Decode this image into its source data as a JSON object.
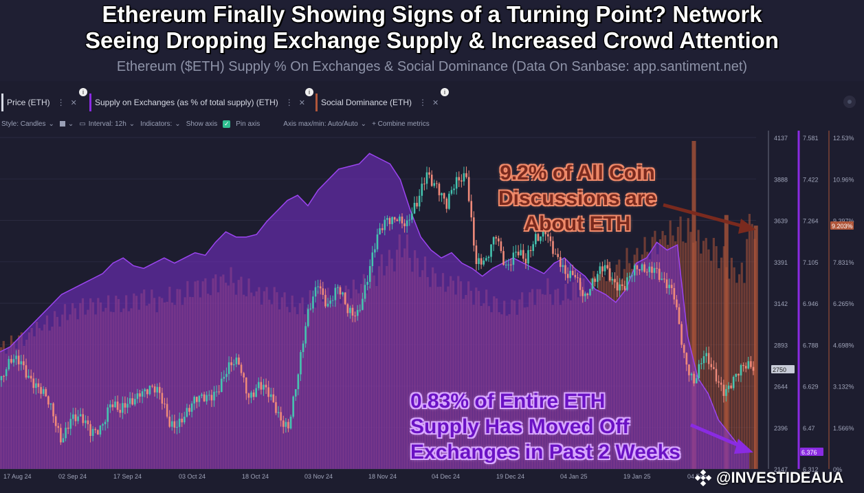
{
  "header": {
    "title_line1": "Ethereum Finally Showing Signs of a Turning Point? Network",
    "title_line2": "Seeing Dropping Exchange Supply & Increased Crowd Attention",
    "subtitle": "Ethereum ($ETH) Supply % On Exchanges & Social Dominance (Data On Sanbase: app.santiment.net)"
  },
  "tabs": [
    {
      "label": "Price (ETH)",
      "color": "#d8dbe6"
    },
    {
      "label": "Supply on Exchanges (as % of total supply) (ETH)",
      "color": "#8a2be2"
    },
    {
      "label": "Social Dominance (ETH)",
      "color": "#b0563a"
    }
  ],
  "toolbar": {
    "style": "Style: Candles",
    "interval": "Interval: 12h",
    "indicators": "Indicators:",
    "show_axis": "Show axis",
    "pin_axis": "Pin axis",
    "axis_maxmin": "Axis max/min: Auto/Auto",
    "combine": "+ Combine metrics"
  },
  "colors": {
    "background": "#1d1d2f",
    "candle_up": "#45c4b0",
    "candle_down": "#f08a7a",
    "supply": "#7a2fd0",
    "social": "#b0563a"
  },
  "annotations": {
    "red": [
      "9.2% of All Coin",
      "Discussions are",
      "About ETH"
    ],
    "purple": [
      "0.83% of Entire ETH",
      "Supply Has Moved Off",
      "Exchanges in Past 2 Weeks"
    ]
  },
  "watermark": "@INVESTIDEAUA",
  "chart_data": {
    "type": "line",
    "x_ticks": [
      "17 Aug 24",
      "02 Sep 24",
      "17 Sep 24",
      "03 Oct 24",
      "18 Oct 24",
      "03 Nov 24",
      "18 Nov 24",
      "04 Dec 24",
      "19 Dec 24",
      "04 Jan 25",
      "19 Jan 25",
      "04 Feb"
    ],
    "axes": {
      "price": {
        "ticks": [
          "4137",
          "3888",
          "3639",
          "3391",
          "3142",
          "2893",
          "2644",
          "2396",
          "2147"
        ],
        "range": [
          2147,
          4137
        ],
        "current": "2750"
      },
      "supply": {
        "ticks": [
          "7.581",
          "7.422",
          "7.264",
          "7.105",
          "6.946",
          "6.788",
          "6.629",
          "6.47",
          "6.312"
        ],
        "range": [
          6.312,
          7.581
        ],
        "current": "6.376"
      },
      "social": {
        "ticks": [
          "12.53%",
          "10.96%",
          "9.397%",
          "7.831%",
          "6.265%",
          "4.698%",
          "3.132%",
          "1.566%",
          "0%"
        ],
        "range": [
          0,
          12.53
        ],
        "current": "9.203%"
      }
    },
    "series": [
      {
        "name": "Price (ETH)",
        "values": [
          2680,
          2760,
          2800,
          2720,
          2600,
          2480,
          2350,
          2480,
          2420,
          2350,
          2430,
          2550,
          2450,
          2550,
          2650,
          2620,
          2560,
          2440,
          2460,
          2480,
          2550,
          2620,
          2650,
          2720,
          2780,
          2620,
          2650,
          2560,
          2480,
          2440,
          2700,
          3050,
          3300,
          3150,
          3200,
          3080,
          3120,
          3300,
          3500,
          3650,
          3700,
          3600,
          3700,
          3950,
          3880,
          3700,
          3850,
          3950,
          3400,
          3350,
          3550,
          3400,
          3450,
          3350,
          3550,
          3620,
          3400,
          3280,
          3350,
          3200,
          3250,
          3350,
          3300,
          3250,
          3300,
          3350,
          3400,
          3250,
          3150,
          2850,
          2700,
          2800,
          2700,
          2650,
          2700,
          2720,
          2750
        ]
      },
      {
        "name": "Supply on Exchanges (as % of total supply) (ETH)",
        "values": [
          6.76,
          6.78,
          6.82,
          6.86,
          6.9,
          6.94,
          6.98,
          7.0,
          7.02,
          7.04,
          7.06,
          7.1,
          7.12,
          7.09,
          7.08,
          7.1,
          7.12,
          7.1,
          7.12,
          7.14,
          7.13,
          7.18,
          7.22,
          7.2,
          7.2,
          7.21,
          7.26,
          7.3,
          7.34,
          7.36,
          7.32,
          7.38,
          7.42,
          7.46,
          7.47,
          7.48,
          7.52,
          7.5,
          7.48,
          7.42,
          7.3,
          7.2,
          7.15,
          7.12,
          7.14,
          7.1,
          7.08,
          7.05,
          7.08,
          7.1,
          7.12,
          7.1,
          7.08,
          7.06,
          7.1,
          7.12,
          7.08,
          7.05,
          7.0,
          6.98,
          6.95,
          7.0,
          7.1,
          7.12,
          7.18,
          7.15,
          7.17,
          6.82,
          6.66,
          6.6,
          6.5,
          6.45,
          6.4,
          6.38
        ]
      },
      {
        "name": "Social Dominance (ETH)",
        "values": [
          4.6,
          4.8,
          4.9,
          5.3,
          5.5,
          5.7,
          5.9,
          6.0,
          6.1,
          6.2,
          6.2,
          6.3,
          6.2,
          6.4,
          6.4,
          6.3,
          6.5,
          6.6,
          6.7,
          6.9,
          6.8,
          7.1,
          7.2,
          7.0,
          6.8,
          6.6,
          6.5,
          6.4,
          6.2,
          6.2,
          6.4,
          6.7,
          6.5,
          6.6,
          6.8,
          7.0,
          7.3,
          7.7,
          7.9,
          8.4,
          7.9,
          7.6,
          7.3,
          7.0,
          7.0,
          6.7,
          6.6,
          6.4,
          6.3,
          6.0,
          6.2,
          6.3,
          6.6,
          6.8,
          6.6,
          6.6,
          6.9,
          6.8,
          7.2,
          7.4,
          7.6,
          7.9,
          8.0,
          8.3,
          8.6,
          8.9,
          9.1,
          9.0,
          8.6,
          8.3,
          8.0,
          7.6,
          7.4,
          9.2
        ]
      }
    ],
    "grid": true,
    "legend": "top"
  }
}
